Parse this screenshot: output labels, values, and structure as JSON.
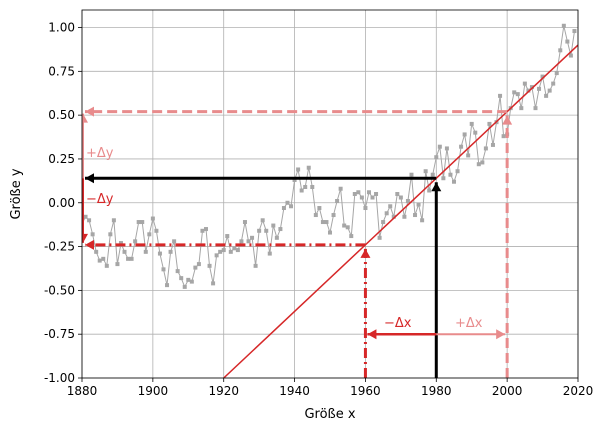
{
  "chart_data": {
    "type": "line",
    "xlabel": "Größe x",
    "ylabel": "Größe y",
    "xlim": [
      1880,
      2020
    ],
    "ylim": [
      -1.0,
      1.1
    ],
    "xticks": [
      1880,
      1900,
      1920,
      1940,
      1960,
      1980,
      2000,
      2020
    ],
    "yticks": [
      -1.0,
      -0.75,
      -0.5,
      -0.25,
      0.0,
      0.25,
      0.5,
      0.75,
      1.0
    ],
    "grid": true,
    "colors": {
      "data": "#a6a6a6",
      "fit": "#d62728",
      "fit_light": "#e88b8c",
      "black": "#000000"
    },
    "x": [
      1880,
      1881,
      1882,
      1883,
      1884,
      1885,
      1886,
      1887,
      1888,
      1889,
      1890,
      1891,
      1892,
      1893,
      1894,
      1895,
      1896,
      1897,
      1898,
      1899,
      1900,
      1901,
      1902,
      1903,
      1904,
      1905,
      1906,
      1907,
      1908,
      1909,
      1910,
      1911,
      1912,
      1913,
      1914,
      1915,
      1916,
      1917,
      1918,
      1919,
      1920,
      1921,
      1922,
      1923,
      1924,
      1925,
      1926,
      1927,
      1928,
      1929,
      1930,
      1931,
      1932,
      1933,
      1934,
      1935,
      1936,
      1937,
      1938,
      1939,
      1940,
      1941,
      1942,
      1943,
      1944,
      1945,
      1946,
      1947,
      1948,
      1949,
      1950,
      1951,
      1952,
      1953,
      1954,
      1955,
      1956,
      1957,
      1958,
      1959,
      1960,
      1961,
      1962,
      1963,
      1964,
      1965,
      1966,
      1967,
      1968,
      1969,
      1970,
      1971,
      1972,
      1973,
      1974,
      1975,
      1976,
      1977,
      1978,
      1979,
      1980,
      1981,
      1982,
      1983,
      1984,
      1985,
      1986,
      1987,
      1988,
      1989,
      1990,
      1991,
      1992,
      1993,
      1994,
      1995,
      1996,
      1997,
      1998,
      1999,
      2000,
      2001,
      2002,
      2003,
      2004,
      2005,
      2006,
      2007,
      2008,
      2009,
      2010,
      2011,
      2012,
      2013,
      2014,
      2015,
      2016,
      2017,
      2018,
      2019
    ],
    "y": [
      -0.12,
      -0.08,
      -0.1,
      -0.18,
      -0.28,
      -0.33,
      -0.32,
      -0.36,
      -0.18,
      -0.1,
      -0.35,
      -0.23,
      -0.28,
      -0.32,
      -0.32,
      -0.22,
      -0.11,
      -0.11,
      -0.28,
      -0.18,
      -0.09,
      -0.16,
      -0.29,
      -0.38,
      -0.47,
      -0.28,
      -0.22,
      -0.39,
      -0.43,
      -0.48,
      -0.44,
      -0.45,
      -0.37,
      -0.35,
      -0.16,
      -0.15,
      -0.36,
      -0.46,
      -0.3,
      -0.28,
      -0.27,
      -0.19,
      -0.28,
      -0.26,
      -0.27,
      -0.22,
      -0.11,
      -0.22,
      -0.2,
      -0.36,
      -0.16,
      -0.1,
      -0.16,
      -0.29,
      -0.13,
      -0.2,
      -0.15,
      -0.03,
      0.0,
      -0.02,
      0.13,
      0.19,
      0.07,
      0.09,
      0.2,
      0.09,
      -0.07,
      -0.03,
      -0.11,
      -0.11,
      -0.17,
      -0.07,
      0.01,
      0.08,
      -0.13,
      -0.14,
      -0.19,
      0.05,
      0.06,
      0.03,
      -0.03,
      0.06,
      0.03,
      0.05,
      -0.2,
      -0.11,
      -0.06,
      -0.02,
      -0.08,
      0.05,
      0.03,
      -0.08,
      0.01,
      0.16,
      -0.07,
      -0.01,
      -0.1,
      0.18,
      0.07,
      0.16,
      0.26,
      0.32,
      0.14,
      0.31,
      0.16,
      0.12,
      0.18,
      0.32,
      0.39,
      0.27,
      0.45,
      0.4,
      0.22,
      0.23,
      0.31,
      0.45,
      0.33,
      0.46,
      0.61,
      0.38,
      0.39,
      0.54,
      0.63,
      0.62,
      0.54,
      0.68,
      0.64,
      0.66,
      0.54,
      0.65,
      0.72,
      0.61,
      0.64,
      0.68,
      0.74,
      0.87,
      1.01,
      0.92,
      0.84,
      0.98
    ],
    "fit_line": {
      "x": [
        1920,
        2020
      ],
      "y": [
        -1.0,
        0.9
      ]
    },
    "annotations": {
      "plus_dy": "+Δy",
      "minus_dy": "−Δy",
      "minus_dx": "−Δx",
      "plus_dx": "+Δx"
    }
  }
}
